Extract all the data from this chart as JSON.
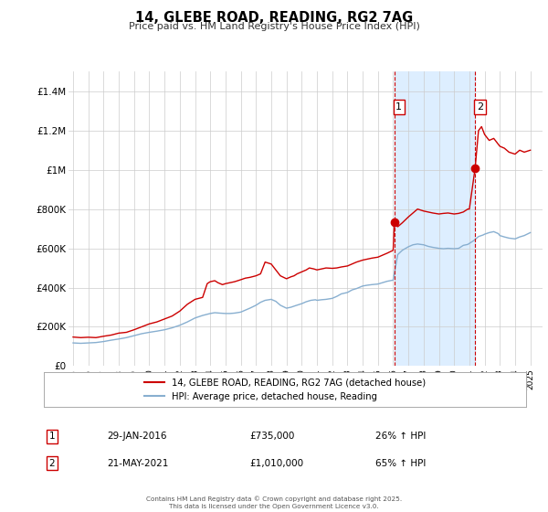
{
  "title": "14, GLEBE ROAD, READING, RG2 7AG",
  "subtitle": "Price paid vs. HM Land Registry's House Price Index (HPI)",
  "footer": "Contains HM Land Registry data © Crown copyright and database right 2025.\nThis data is licensed under the Open Government Licence v3.0.",
  "ylim": [
    0,
    1500000
  ],
  "yticks": [
    0,
    200000,
    400000,
    600000,
    800000,
    1000000,
    1200000,
    1400000
  ],
  "ytick_labels": [
    "£0",
    "£200K",
    "£400K",
    "£600K",
    "£800K",
    "£1M",
    "£1.2M",
    "£1.4M"
  ],
  "xlim_start": 1994.7,
  "xlim_end": 2025.8,
  "xticks": [
    1995,
    1996,
    1997,
    1998,
    1999,
    2000,
    2001,
    2002,
    2003,
    2004,
    2005,
    2006,
    2007,
    2008,
    2009,
    2010,
    2011,
    2012,
    2013,
    2014,
    2015,
    2016,
    2017,
    2018,
    2019,
    2020,
    2021,
    2022,
    2023,
    2024,
    2025
  ],
  "red_line_color": "#cc0000",
  "blue_line_color": "#88afd0",
  "shade_color": "#ddeeff",
  "vline_color": "#cc0000",
  "marker1_x": 2016.08,
  "marker1_y": 735000,
  "marker2_x": 2021.38,
  "marker2_y": 1010000,
  "annotation1_label": "1",
  "annotation2_label": "2",
  "annotation1_date": "29-JAN-2016",
  "annotation1_price": "£735,000",
  "annotation1_hpi": "26% ↑ HPI",
  "annotation2_date": "21-MAY-2021",
  "annotation2_price": "£1,010,000",
  "annotation2_hpi": "65% ↑ HPI",
  "legend_label_red": "14, GLEBE ROAD, READING, RG2 7AG (detached house)",
  "legend_label_blue": "HPI: Average price, detached house, Reading",
  "red_hpi_data": [
    [
      1995.0,
      148000
    ],
    [
      1995.5,
      145000
    ],
    [
      1996.0,
      147000
    ],
    [
      1996.5,
      145000
    ],
    [
      1997.0,
      152000
    ],
    [
      1997.5,
      158000
    ],
    [
      1998.0,
      168000
    ],
    [
      1998.5,
      172000
    ],
    [
      1999.0,
      185000
    ],
    [
      1999.5,
      200000
    ],
    [
      2000.0,
      215000
    ],
    [
      2000.5,
      225000
    ],
    [
      2001.0,
      240000
    ],
    [
      2001.5,
      255000
    ],
    [
      2002.0,
      280000
    ],
    [
      2002.5,
      315000
    ],
    [
      2003.0,
      340000
    ],
    [
      2003.5,
      350000
    ],
    [
      2003.8,
      420000
    ],
    [
      2004.0,
      430000
    ],
    [
      2004.3,
      435000
    ],
    [
      2004.5,
      425000
    ],
    [
      2004.8,
      415000
    ],
    [
      2005.0,
      420000
    ],
    [
      2005.3,
      425000
    ],
    [
      2005.6,
      430000
    ],
    [
      2006.0,
      440000
    ],
    [
      2006.3,
      448000
    ],
    [
      2006.6,
      452000
    ],
    [
      2007.0,
      460000
    ],
    [
      2007.3,
      470000
    ],
    [
      2007.6,
      530000
    ],
    [
      2008.0,
      520000
    ],
    [
      2008.3,
      490000
    ],
    [
      2008.6,
      460000
    ],
    [
      2009.0,
      445000
    ],
    [
      2009.3,
      455000
    ],
    [
      2009.5,
      460000
    ],
    [
      2009.7,
      470000
    ],
    [
      2010.0,
      480000
    ],
    [
      2010.3,
      490000
    ],
    [
      2010.5,
      500000
    ],
    [
      2010.8,
      495000
    ],
    [
      2011.0,
      490000
    ],
    [
      2011.3,
      495000
    ],
    [
      2011.6,
      500000
    ],
    [
      2012.0,
      498000
    ],
    [
      2012.3,
      500000
    ],
    [
      2012.6,
      505000
    ],
    [
      2013.0,
      510000
    ],
    [
      2013.3,
      520000
    ],
    [
      2013.6,
      530000
    ],
    [
      2014.0,
      540000
    ],
    [
      2014.3,
      545000
    ],
    [
      2014.6,
      550000
    ],
    [
      2015.0,
      555000
    ],
    [
      2015.3,
      565000
    ],
    [
      2015.6,
      575000
    ],
    [
      2016.0,
      590000
    ],
    [
      2016.08,
      735000
    ],
    [
      2016.3,
      710000
    ],
    [
      2016.6,
      730000
    ],
    [
      2017.0,
      760000
    ],
    [
      2017.3,
      780000
    ],
    [
      2017.6,
      800000
    ],
    [
      2018.0,
      790000
    ],
    [
      2018.3,
      785000
    ],
    [
      2018.6,
      780000
    ],
    [
      2019.0,
      775000
    ],
    [
      2019.3,
      778000
    ],
    [
      2019.6,
      780000
    ],
    [
      2020.0,
      775000
    ],
    [
      2020.3,
      778000
    ],
    [
      2020.6,
      785000
    ],
    [
      2020.9,
      800000
    ],
    [
      2021.0,
      800000
    ],
    [
      2021.38,
      1010000
    ],
    [
      2021.6,
      1200000
    ],
    [
      2021.8,
      1220000
    ],
    [
      2022.0,
      1180000
    ],
    [
      2022.3,
      1150000
    ],
    [
      2022.6,
      1160000
    ],
    [
      2022.9,
      1130000
    ],
    [
      2023.0,
      1120000
    ],
    [
      2023.3,
      1110000
    ],
    [
      2023.6,
      1090000
    ],
    [
      2024.0,
      1080000
    ],
    [
      2024.3,
      1100000
    ],
    [
      2024.6,
      1090000
    ],
    [
      2025.0,
      1100000
    ]
  ],
  "blue_hpi_data": [
    [
      1995.0,
      118000
    ],
    [
      1995.5,
      116000
    ],
    [
      1996.0,
      118000
    ],
    [
      1996.5,
      120000
    ],
    [
      1997.0,
      125000
    ],
    [
      1997.5,
      132000
    ],
    [
      1998.0,
      138000
    ],
    [
      1998.5,
      145000
    ],
    [
      1999.0,
      155000
    ],
    [
      1999.5,
      165000
    ],
    [
      2000.0,
      172000
    ],
    [
      2000.5,
      178000
    ],
    [
      2001.0,
      185000
    ],
    [
      2001.5,
      195000
    ],
    [
      2002.0,
      208000
    ],
    [
      2002.5,
      225000
    ],
    [
      2003.0,
      245000
    ],
    [
      2003.5,
      258000
    ],
    [
      2004.0,
      268000
    ],
    [
      2004.3,
      272000
    ],
    [
      2004.6,
      270000
    ],
    [
      2005.0,
      268000
    ],
    [
      2005.3,
      268000
    ],
    [
      2005.6,
      270000
    ],
    [
      2006.0,
      275000
    ],
    [
      2006.3,
      285000
    ],
    [
      2006.6,
      295000
    ],
    [
      2007.0,
      310000
    ],
    [
      2007.3,
      325000
    ],
    [
      2007.6,
      335000
    ],
    [
      2008.0,
      340000
    ],
    [
      2008.3,
      330000
    ],
    [
      2008.6,
      310000
    ],
    [
      2009.0,
      295000
    ],
    [
      2009.3,
      300000
    ],
    [
      2009.6,
      308000
    ],
    [
      2010.0,
      318000
    ],
    [
      2010.3,
      328000
    ],
    [
      2010.6,
      335000
    ],
    [
      2010.9,
      338000
    ],
    [
      2011.0,
      335000
    ],
    [
      2011.3,
      338000
    ],
    [
      2011.6,
      340000
    ],
    [
      2012.0,
      345000
    ],
    [
      2012.3,
      355000
    ],
    [
      2012.6,
      368000
    ],
    [
      2013.0,
      375000
    ],
    [
      2013.3,
      388000
    ],
    [
      2013.6,
      395000
    ],
    [
      2014.0,
      408000
    ],
    [
      2014.3,
      412000
    ],
    [
      2014.6,
      415000
    ],
    [
      2015.0,
      418000
    ],
    [
      2015.3,
      425000
    ],
    [
      2015.6,
      432000
    ],
    [
      2016.0,
      438000
    ],
    [
      2016.3,
      568000
    ],
    [
      2016.6,
      590000
    ],
    [
      2017.0,
      608000
    ],
    [
      2017.3,
      618000
    ],
    [
      2017.6,
      622000
    ],
    [
      2018.0,
      618000
    ],
    [
      2018.3,
      610000
    ],
    [
      2018.6,
      605000
    ],
    [
      2019.0,
      600000
    ],
    [
      2019.3,
      598000
    ],
    [
      2019.6,
      600000
    ],
    [
      2020.0,
      598000
    ],
    [
      2020.3,
      600000
    ],
    [
      2020.6,
      615000
    ],
    [
      2020.9,
      620000
    ],
    [
      2021.0,
      625000
    ],
    [
      2021.3,
      640000
    ],
    [
      2021.6,
      660000
    ],
    [
      2021.9,
      668000
    ],
    [
      2022.0,
      672000
    ],
    [
      2022.3,
      680000
    ],
    [
      2022.6,
      685000
    ],
    [
      2022.9,
      675000
    ],
    [
      2023.0,
      665000
    ],
    [
      2023.3,
      658000
    ],
    [
      2023.6,
      652000
    ],
    [
      2024.0,
      648000
    ],
    [
      2024.3,
      658000
    ],
    [
      2024.6,
      665000
    ],
    [
      2025.0,
      680000
    ]
  ]
}
